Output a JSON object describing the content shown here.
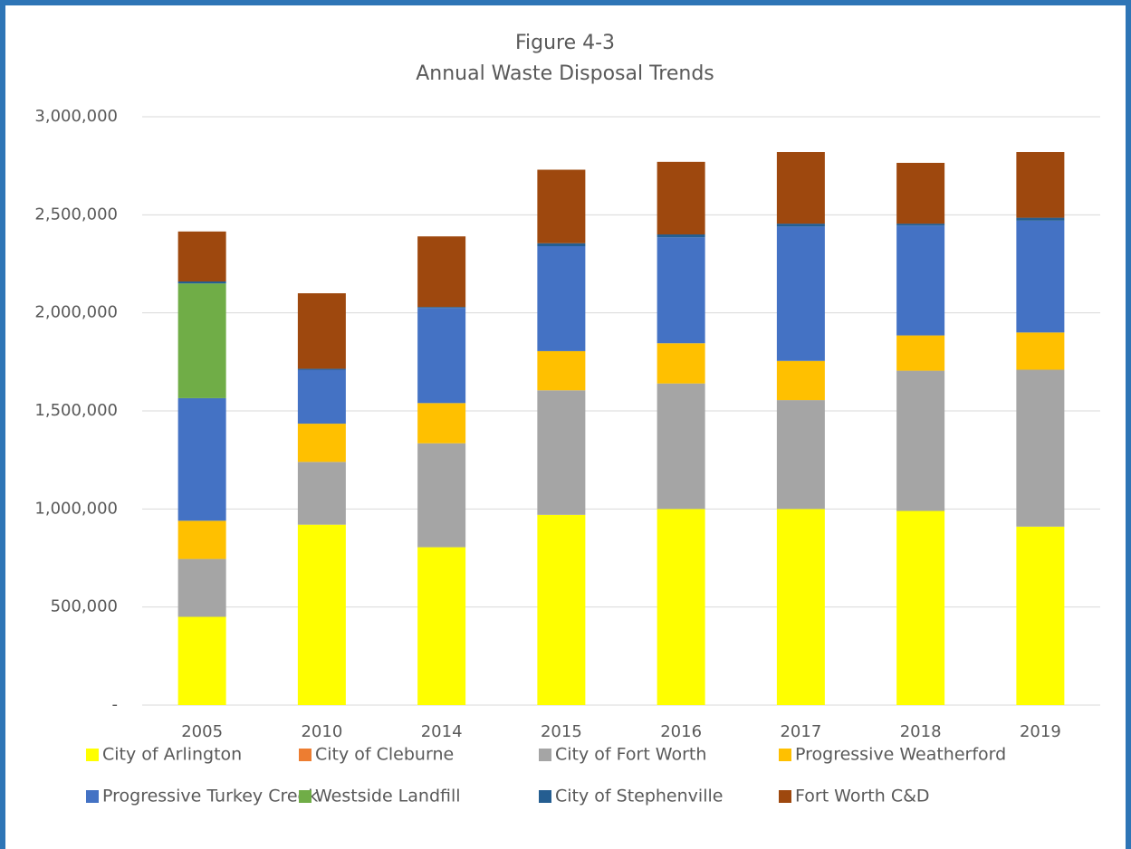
{
  "chart_data": {
    "type": "stacked_bar",
    "title": "Figure 4-3",
    "subtitle": "Annual Waste Disposal Trends",
    "categories": [
      "2005",
      "2010",
      "2014",
      "2015",
      "2016",
      "2017",
      "2018",
      "2019"
    ],
    "series": [
      {
        "name": "City of Arlington",
        "color": "#ffff00",
        "values": [
          450000,
          920000,
          805000,
          970000,
          1000000,
          1000000,
          990000,
          910000
        ]
      },
      {
        "name": "City of Cleburne",
        "color": "#ed7d31",
        "values": [
          0,
          0,
          0,
          0,
          0,
          0,
          0,
          0
        ]
      },
      {
        "name": "City of Fort Worth",
        "color": "#a5a5a5",
        "values": [
          295000,
          320000,
          530000,
          635000,
          640000,
          555000,
          715000,
          800000
        ]
      },
      {
        "name": "Progressive Weatherford",
        "color": "#ffc000",
        "values": [
          195000,
          195000,
          205000,
          200000,
          205000,
          200000,
          180000,
          190000
        ]
      },
      {
        "name": "Progressive Turkey Creek",
        "color": "#4472c4",
        "values": [
          625000,
          275000,
          485000,
          535000,
          540000,
          685000,
          560000,
          570000
        ]
      },
      {
        "name": "Westside Landfill",
        "color": "#70ad47",
        "values": [
          585000,
          0,
          0,
          0,
          0,
          0,
          0,
          0
        ]
      },
      {
        "name": "City of Stephenville",
        "color": "#255e91",
        "values": [
          10000,
          5000,
          5000,
          15000,
          15000,
          15000,
          10000,
          15000
        ]
      },
      {
        "name": "Fort Worth C&D",
        "color": "#9e480e",
        "values": [
          255000,
          385000,
          360000,
          375000,
          370000,
          365000,
          310000,
          335000
        ]
      }
    ],
    "ylim": [
      0,
      3000000
    ],
    "yticks": [
      {
        "value": 0,
        "label": "-"
      },
      {
        "value": 500000,
        "label": "500,000"
      },
      {
        "value": 1000000,
        "label": "1,000,000"
      },
      {
        "value": 1500000,
        "label": "1,500,000"
      },
      {
        "value": 2000000,
        "label": "2,000,000"
      },
      {
        "value": 2500000,
        "label": "2,500,000"
      },
      {
        "value": 3000000,
        "label": "3,000,000"
      }
    ],
    "grid": true
  }
}
